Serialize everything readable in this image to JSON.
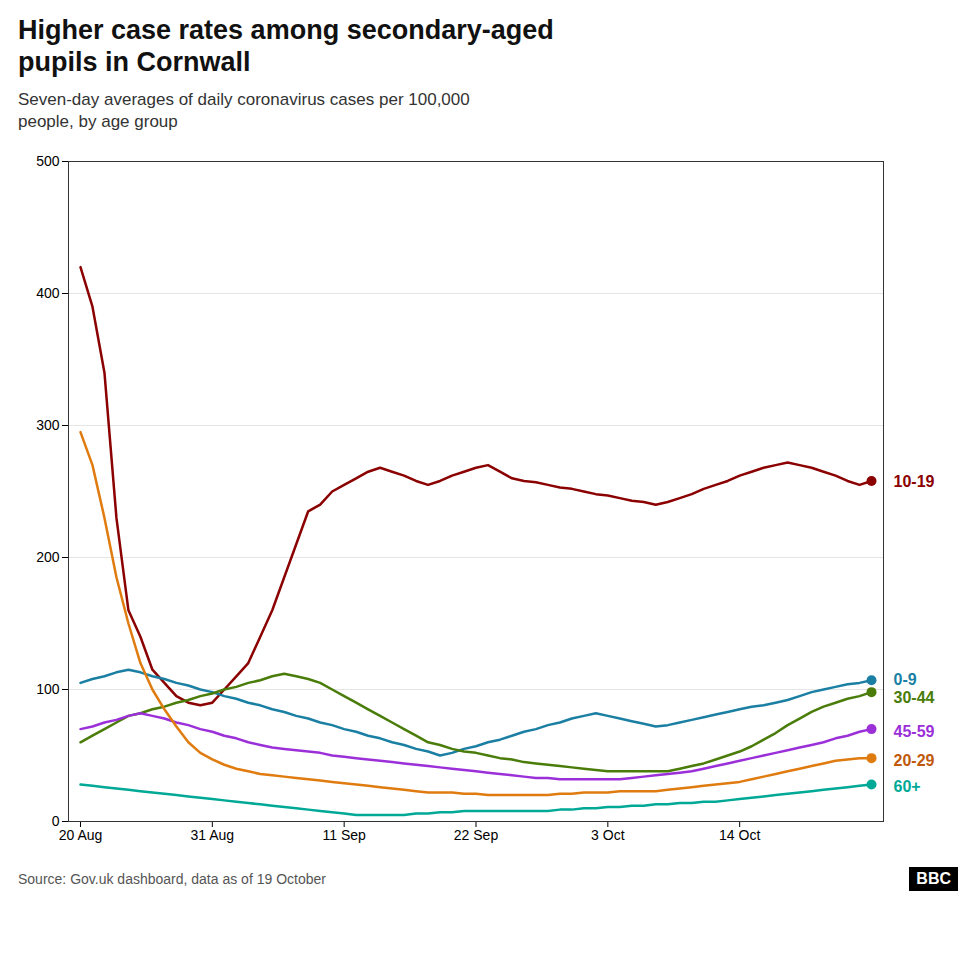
{
  "chart_data": {
    "type": "line",
    "title": "Higher case rates among secondary-aged\npupils in Cornwall",
    "subtitle": "Seven-day averages of daily coronavirus cases per 100,000\npeople, by age group",
    "source": "Source: Gov.uk dashboard, data as of 19 October",
    "logo": "BBC",
    "x": [
      0,
      1,
      2,
      3,
      4,
      5,
      6,
      7,
      8,
      9,
      10,
      11,
      12,
      13,
      14,
      15,
      16,
      17,
      18,
      19,
      20,
      21,
      22,
      23,
      24,
      25,
      26,
      27,
      28,
      29,
      30,
      31,
      32,
      33,
      34,
      35,
      36,
      37,
      38,
      39,
      40,
      41,
      42,
      43,
      44,
      45,
      46,
      47,
      48,
      49,
      50,
      51,
      52,
      53,
      54,
      55,
      56,
      57,
      58,
      59,
      60,
      61,
      62,
      63,
      64,
      65,
      66
    ],
    "xlim": [
      -1,
      67
    ],
    "xticks": [
      {
        "value": 0,
        "label": "20 Aug"
      },
      {
        "value": 11,
        "label": "31 Aug"
      },
      {
        "value": 22,
        "label": "11 Sep"
      },
      {
        "value": 33,
        "label": "22 Sep"
      },
      {
        "value": 44,
        "label": "3 Oct"
      },
      {
        "value": 55,
        "label": "14 Oct"
      }
    ],
    "ylim": [
      0,
      500
    ],
    "yticks": [
      0,
      100,
      200,
      300,
      400,
      500
    ],
    "grid": true,
    "series": [
      {
        "name": "10-19",
        "color": "#8B0000",
        "values": [
          420,
          390,
          340,
          230,
          160,
          140,
          115,
          105,
          95,
          90,
          88,
          90,
          100,
          110,
          120,
          140,
          160,
          185,
          210,
          235,
          240,
          250,
          255,
          260,
          265,
          268,
          265,
          262,
          258,
          255,
          258,
          262,
          265,
          268,
          270,
          265,
          260,
          258,
          257,
          255,
          253,
          252,
          250,
          248,
          247,
          245,
          243,
          242,
          240,
          242,
          245,
          248,
          252,
          255,
          258,
          262,
          265,
          268,
          270,
          272,
          270,
          268,
          265,
          262,
          258,
          255,
          258
        ]
      },
      {
        "name": "0-9",
        "color": "#1a7fa3",
        "values": [
          105,
          108,
          110,
          113,
          115,
          113,
          110,
          108,
          105,
          103,
          100,
          98,
          95,
          93,
          90,
          88,
          85,
          83,
          80,
          78,
          75,
          73,
          70,
          68,
          65,
          63,
          60,
          58,
          55,
          53,
          50,
          52,
          55,
          57,
          60,
          62,
          65,
          68,
          70,
          73,
          75,
          78,
          80,
          82,
          80,
          78,
          76,
          74,
          72,
          73,
          75,
          77,
          79,
          81,
          83,
          85,
          87,
          88,
          90,
          92,
          95,
          98,
          100,
          102,
          104,
          105,
          107
        ]
      },
      {
        "name": "30-44",
        "color": "#4a7c0a",
        "values": [
          60,
          65,
          70,
          75,
          80,
          82,
          85,
          87,
          90,
          92,
          95,
          97,
          100,
          102,
          105,
          107,
          110,
          112,
          110,
          108,
          105,
          100,
          95,
          90,
          85,
          80,
          75,
          70,
          65,
          60,
          58,
          55,
          53,
          52,
          50,
          48,
          47,
          45,
          44,
          43,
          42,
          41,
          40,
          39,
          38,
          38,
          38,
          38,
          38,
          38,
          40,
          42,
          44,
          47,
          50,
          53,
          57,
          62,
          67,
          73,
          78,
          83,
          87,
          90,
          93,
          95,
          98
        ]
      },
      {
        "name": "45-59",
        "color": "#9b30d9",
        "values": [
          70,
          72,
          75,
          77,
          80,
          82,
          80,
          78,
          75,
          73,
          70,
          68,
          65,
          63,
          60,
          58,
          56,
          55,
          54,
          53,
          52,
          50,
          49,
          48,
          47,
          46,
          45,
          44,
          43,
          42,
          41,
          40,
          39,
          38,
          37,
          36,
          35,
          34,
          33,
          33,
          32,
          32,
          32,
          32,
          32,
          32,
          33,
          34,
          35,
          36,
          37,
          38,
          40,
          42,
          44,
          46,
          48,
          50,
          52,
          54,
          56,
          58,
          60,
          63,
          65,
          68,
          70
        ]
      },
      {
        "name": "20-29",
        "color": "#e07b10",
        "values": [
          295,
          270,
          230,
          185,
          150,
          120,
          100,
          85,
          72,
          60,
          52,
          47,
          43,
          40,
          38,
          36,
          35,
          34,
          33,
          32,
          31,
          30,
          29,
          28,
          27,
          26,
          25,
          24,
          23,
          22,
          22,
          22,
          21,
          21,
          20,
          20,
          20,
          20,
          20,
          20,
          21,
          21,
          22,
          22,
          22,
          23,
          23,
          23,
          23,
          24,
          25,
          26,
          27,
          28,
          29,
          30,
          32,
          34,
          36,
          38,
          40,
          42,
          44,
          46,
          47,
          48,
          48
        ]
      },
      {
        "name": "60+",
        "color": "#00a896",
        "values": [
          28,
          27,
          26,
          25,
          24,
          23,
          22,
          21,
          20,
          19,
          18,
          17,
          16,
          15,
          14,
          13,
          12,
          11,
          10,
          9,
          8,
          7,
          6,
          5,
          5,
          5,
          5,
          5,
          6,
          6,
          7,
          7,
          8,
          8,
          8,
          8,
          8,
          8,
          8,
          8,
          9,
          9,
          10,
          10,
          11,
          11,
          12,
          12,
          13,
          13,
          14,
          14,
          15,
          15,
          16,
          17,
          18,
          19,
          20,
          21,
          22,
          23,
          24,
          25,
          26,
          27,
          28
        ]
      }
    ],
    "annotations": [
      {
        "text": "10-19",
        "y": 257,
        "color": "#8B0000"
      },
      {
        "text": "0-9",
        "y": 107,
        "color": "#1a7fa3"
      },
      {
        "text": "30-44",
        "y": 94,
        "color": "#4a7c0a"
      },
      {
        "text": "45-59",
        "y": 68,
        "color": "#9b30d9"
      },
      {
        "text": "20-29",
        "y": 46,
        "color": "#c0590a"
      },
      {
        "text": "60+",
        "y": 26,
        "color": "#00a896"
      }
    ]
  }
}
